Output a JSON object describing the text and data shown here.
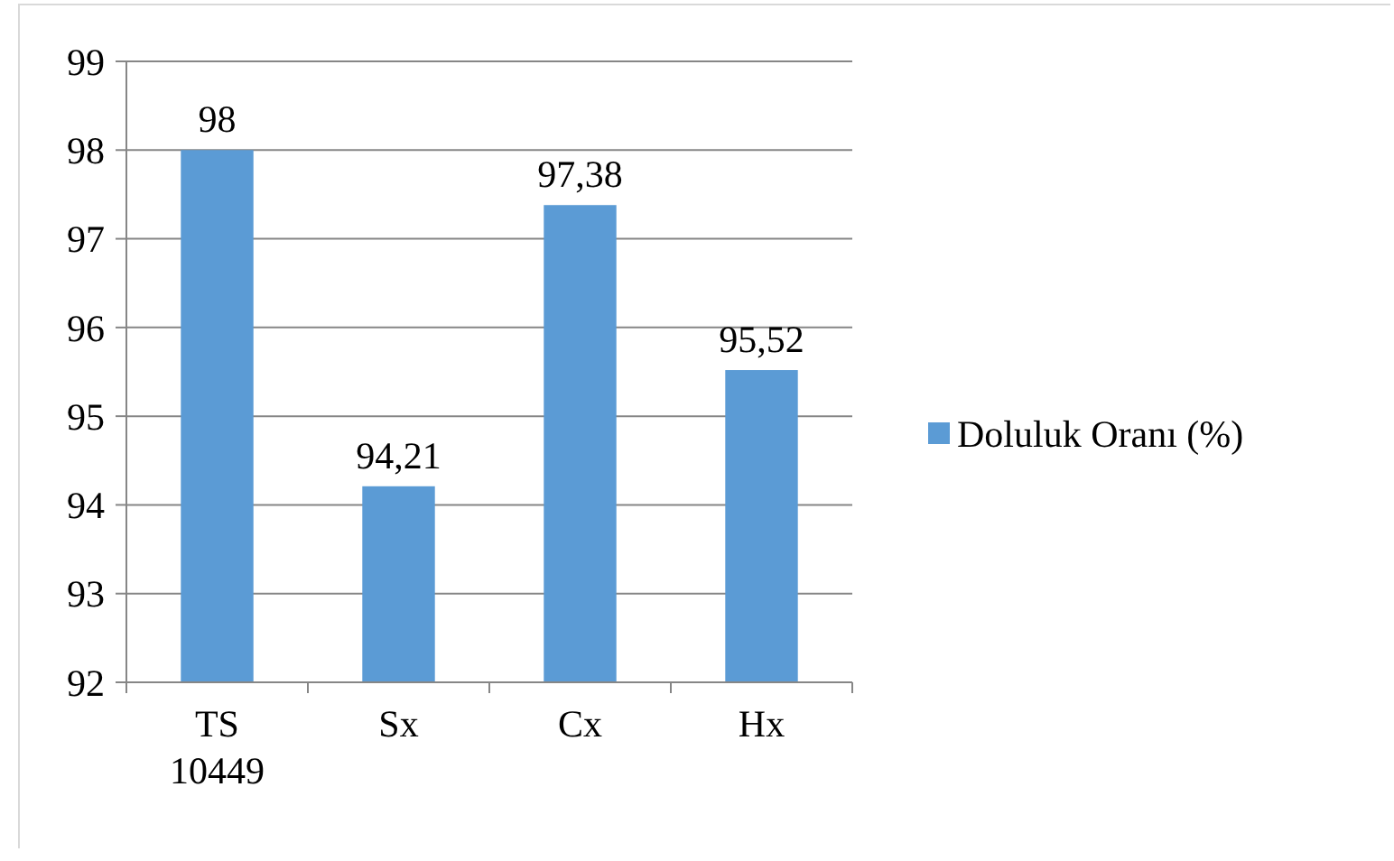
{
  "chart_data": {
    "type": "bar",
    "categories": [
      "TS 10449",
      "Sx",
      "Cx",
      "Hx"
    ],
    "series": [
      {
        "name": "Doluluk Oranı (%)",
        "color": "#5b9bd5",
        "values": [
          98,
          94.21,
          97.38,
          95.52
        ],
        "value_labels": [
          "98",
          "94,21",
          "97,38",
          "95,52"
        ]
      }
    ],
    "ylim": [
      92,
      99
    ],
    "yticks": [
      92,
      93,
      94,
      95,
      96,
      97,
      98,
      99
    ],
    "grid": "y",
    "legend": "right"
  }
}
